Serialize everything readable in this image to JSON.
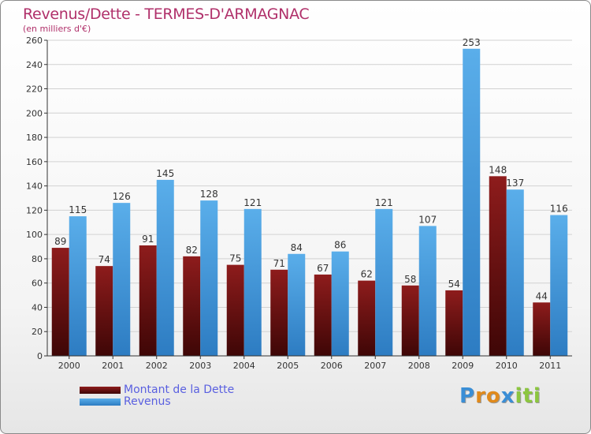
{
  "chart_data": {
    "type": "bar",
    "title": "Revenus/Dette - TERMES-D'ARMAGNAC",
    "subtitle": "(en milliers d'€)",
    "xlabel": "",
    "ylabel": "",
    "ylim": [
      0,
      260
    ],
    "ytick_step": 20,
    "categories": [
      "2000",
      "2001",
      "2002",
      "2003",
      "2004",
      "2005",
      "2006",
      "2007",
      "2008",
      "2009",
      "2010",
      "2011"
    ],
    "series": [
      {
        "name": "Montant de la Dette",
        "color": "#7a1414",
        "values": [
          89,
          74,
          91,
          82,
          75,
          71,
          67,
          62,
          58,
          54,
          148,
          44
        ]
      },
      {
        "name": "Revenus",
        "color": "#4fa3e3",
        "values": [
          115,
          126,
          145,
          128,
          121,
          84,
          86,
          121,
          107,
          253,
          137,
          116
        ]
      }
    ],
    "grid": true,
    "legend_position": "bottom-left"
  },
  "logo": {
    "letters": [
      "P",
      "r",
      "o",
      "x",
      "i",
      "t",
      "i"
    ],
    "colors": [
      "#3a8ed6",
      "#e08a1c",
      "#e08a1c",
      "#3a8ed6",
      "#8cc63f",
      "#8cc63f",
      "#8cc63f"
    ]
  }
}
